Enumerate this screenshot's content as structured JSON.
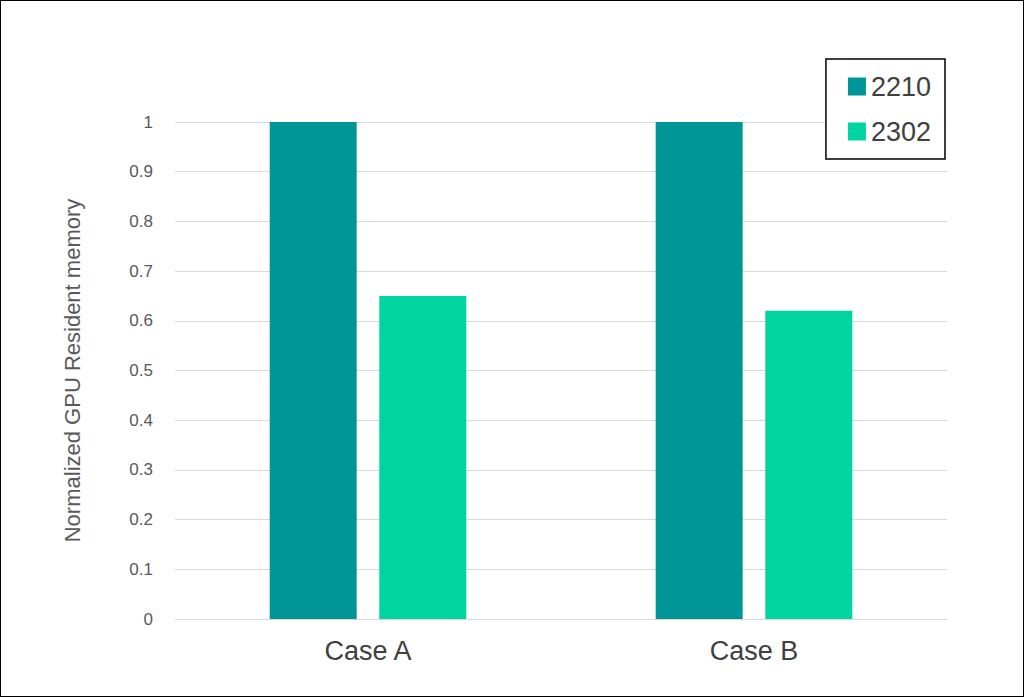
{
  "chart_data": {
    "type": "bar",
    "y_label": "Normalized GPU Resident memory",
    "categories": [
      "Case A",
      "Case B"
    ],
    "series": [
      {
        "name": "2210",
        "color": "#009597",
        "values": [
          1,
          1
        ]
      },
      {
        "name": "2302",
        "color": "#00d4a0",
        "values": [
          0.65,
          0.62
        ]
      }
    ],
    "ylim": [
      0,
      1
    ],
    "yticks": [
      0,
      0.1,
      0.2,
      0.3,
      0.4,
      0.5,
      0.6,
      0.7,
      0.8,
      0.9,
      1
    ],
    "grid": true,
    "legend": "top-right"
  }
}
